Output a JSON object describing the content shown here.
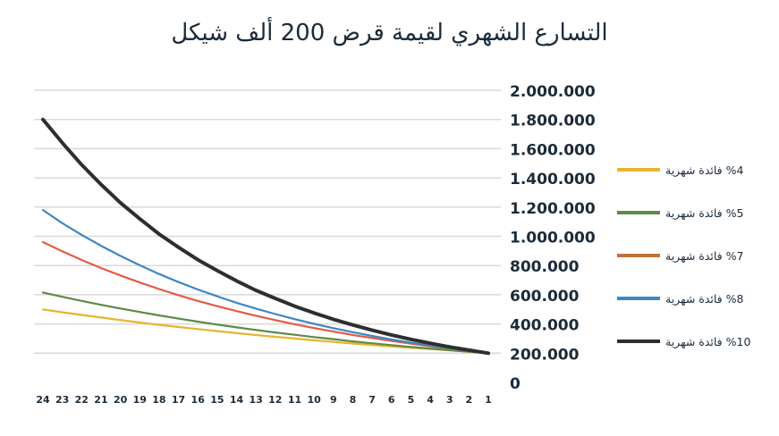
{
  "title": "التسارع الشهري لقيمة قرض 200 ألف شيكل",
  "chart_data": {
    "type": "line",
    "title": "التسارع الشهري لقيمة قرض 200 ألف شيكل",
    "x": [
      24,
      23,
      22,
      21,
      20,
      19,
      18,
      17,
      16,
      15,
      14,
      13,
      12,
      11,
      10,
      9,
      8,
      7,
      6,
      5,
      4,
      3,
      2,
      1
    ],
    "x_tick_labels": [
      "24",
      "23",
      "22",
      "21",
      "20",
      "19",
      "18",
      "17",
      "16",
      "15",
      "14",
      "13",
      "12",
      "11",
      "10",
      "9",
      "8",
      "7",
      "6",
      "5",
      "4",
      "3",
      "2",
      "1"
    ],
    "y_tick_labels": [
      "0",
      "200.000",
      "400.000",
      "600.000",
      "800.000",
      "1.000.000",
      "1.200.000",
      "1.400.000",
      "1.600.000",
      "1.800.000",
      "2.000.000"
    ],
    "ylim": [
      0,
      2000000
    ],
    "grid": true,
    "y_axis_side": "right",
    "x_axis_reversed": true,
    "legend_position": "right",
    "series": [
      {
        "name": "%4 فائدة شهرية",
        "color": "#e8b42c",
        "values": [
          500000,
          480000,
          462000,
          444000,
          427000,
          410000,
          394000,
          379000,
          365000,
          351000,
          337000,
          324000,
          312000,
          300000,
          288000,
          277000,
          266000,
          256000,
          246000,
          237000,
          228000,
          219000,
          210000,
          200000
        ]
      },
      {
        "name": "%5 فائدة شهرية",
        "color": "#5e8a45",
        "values": [
          615000,
          586000,
          558000,
          531000,
          506000,
          482000,
          459000,
          437000,
          416000,
          396000,
          377000,
          359000,
          342000,
          326000,
          310000,
          296000,
          281000,
          268000,
          255000,
          243000,
          232000,
          221000,
          210000,
          200000
        ]
      },
      {
        "name": "%7 فائدة شهرية",
        "color": "#e55a45",
        "values": [
          960000,
          897000,
          838000,
          783000,
          732000,
          684000,
          639000,
          597000,
          558000,
          522000,
          488000,
          456000,
          426000,
          398000,
          372000,
          348000,
          325000,
          304000,
          284000,
          265000,
          248000,
          231000,
          214000,
          200000
        ]
      },
      {
        "name": "%8 فائدة شهرية",
        "color": "#3d87c4",
        "values": [
          1180000,
          1090000,
          1010000,
          935000,
          866000,
          802000,
          742000,
          687000,
          636000,
          589000,
          545000,
          505000,
          468000,
          433000,
          401000,
          371000,
          344000,
          318000,
          294000,
          272000,
          252000,
          233000,
          216000,
          200000
        ]
      },
      {
        "name": "%10 فائدة شهرية",
        "color": "#2e2e2e",
        "values": [
          1800000,
          1640000,
          1490000,
          1355000,
          1230000,
          1120000,
          1015000,
          925000,
          840000,
          765000,
          695000,
          630000,
          575000,
          522000,
          475000,
          432000,
          393000,
          357000,
          325000,
          295000,
          268000,
          243000,
          221000,
          200000
        ]
      }
    ]
  },
  "legend_label_colors": [
    "#e8b42c",
    "#5e8a45",
    "#c4703a",
    "#3d87c4",
    "#2e2e2e"
  ]
}
